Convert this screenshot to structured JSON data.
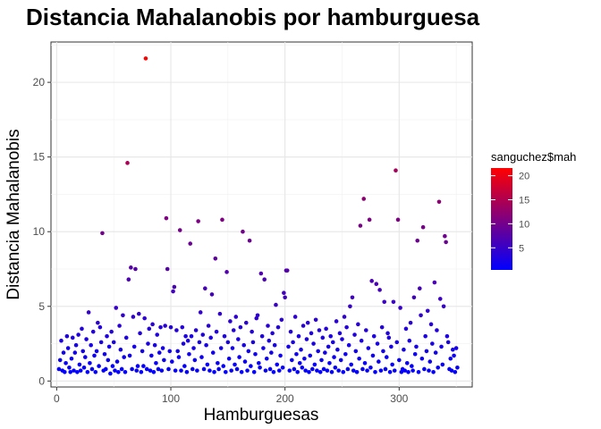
{
  "chart_data": {
    "type": "scatter",
    "title": "Distancia Mahalanobis por hamburguesa",
    "xlabel": "Hamburguesas",
    "ylabel": "Distancia Mahalanobis",
    "xlim": [
      -5,
      364
    ],
    "ylim": [
      -0.4,
      22.7
    ],
    "x_ticks": [
      0,
      100,
      200,
      300
    ],
    "y_ticks": [
      0,
      5,
      10,
      15,
      20
    ],
    "grid": true,
    "legend": {
      "title": "sanguchez$mah",
      "position": "right",
      "low_color": "#0000FF",
      "high_color": "#FF0000",
      "range": [
        0.4,
        21.6
      ],
      "ticks": [
        5,
        10,
        15,
        20
      ]
    },
    "points": [
      [
        2,
        0.8
      ],
      [
        3,
        1.4
      ],
      [
        4,
        2.7
      ],
      [
        5,
        0.7
      ],
      [
        6,
        1.9
      ],
      [
        7,
        0.6
      ],
      [
        8,
        1.2
      ],
      [
        9,
        3.0
      ],
      [
        10,
        2.2
      ],
      [
        11,
        0.9
      ],
      [
        12,
        0.6
      ],
      [
        13,
        1.5
      ],
      [
        14,
        2.9
      ],
      [
        15,
        0.7
      ],
      [
        16,
        1.9
      ],
      [
        17,
        2.4
      ],
      [
        18,
        0.6
      ],
      [
        19,
        3.1
      ],
      [
        20,
        1.1
      ],
      [
        21,
        0.7
      ],
      [
        22,
        3.5
      ],
      [
        23,
        2.0
      ],
      [
        24,
        0.9
      ],
      [
        25,
        1.6
      ],
      [
        26,
        2.8
      ],
      [
        27,
        0.6
      ],
      [
        28,
        4.6
      ],
      [
        29,
        1.2
      ],
      [
        30,
        2.4
      ],
      [
        31,
        0.8
      ],
      [
        32,
        3.3
      ],
      [
        33,
        1.7
      ],
      [
        34,
        0.6
      ],
      [
        35,
        2.0
      ],
      [
        36,
        3.9
      ],
      [
        37,
        1.0
      ],
      [
        38,
        3.6
      ],
      [
        39,
        2.6
      ],
      [
        40,
        9.9
      ],
      [
        41,
        0.7
      ],
      [
        42,
        1.8
      ],
      [
        43,
        0.8
      ],
      [
        44,
        3.0
      ],
      [
        45,
        1.4
      ],
      [
        46,
        2.3
      ],
      [
        47,
        0.5
      ],
      [
        48,
        3.3
      ],
      [
        49,
        1.0
      ],
      [
        50,
        2.6
      ],
      [
        51,
        0.7
      ],
      [
        52,
        4.9
      ],
      [
        53,
        1.3
      ],
      [
        54,
        0.6
      ],
      [
        55,
        3.7
      ],
      [
        56,
        2.1
      ],
      [
        57,
        0.8
      ],
      [
        58,
        4.4
      ],
      [
        59,
        1.6
      ],
      [
        60,
        0.6
      ],
      [
        61,
        2.9
      ],
      [
        62,
        14.6
      ],
      [
        63,
        6.8
      ],
      [
        64,
        1.7
      ],
      [
        65,
        7.6
      ],
      [
        66,
        0.8
      ],
      [
        67,
        4.3
      ],
      [
        68,
        2.3
      ],
      [
        69,
        7.5
      ],
      [
        70,
        0.7
      ],
      [
        71,
        1.0
      ],
      [
        72,
        4.5
      ],
      [
        73,
        3.2
      ],
      [
        74,
        0.6
      ],
      [
        75,
        2.0
      ],
      [
        76,
        1.0
      ],
      [
        77,
        4.2
      ],
      [
        78,
        21.6
      ],
      [
        79,
        0.8
      ],
      [
        80,
        2.5
      ],
      [
        81,
        3.5
      ],
      [
        82,
        0.7
      ],
      [
        83,
        1.7
      ],
      [
        84,
        3.8
      ],
      [
        85,
        0.6
      ],
      [
        86,
        2.4
      ],
      [
        87,
        1.2
      ],
      [
        88,
        3.1
      ],
      [
        89,
        0.8
      ],
      [
        90,
        1.9
      ],
      [
        91,
        3.6
      ],
      [
        92,
        0.7
      ],
      [
        93,
        2.2
      ],
      [
        94,
        1.4
      ],
      [
        95,
        3.7
      ],
      [
        96,
        10.9
      ],
      [
        97,
        7.5
      ],
      [
        98,
        0.8
      ],
      [
        99,
        2.0
      ],
      [
        100,
        3.6
      ],
      [
        101,
        1.3
      ],
      [
        102,
        6.0
      ],
      [
        103,
        6.3
      ],
      [
        104,
        0.7
      ],
      [
        105,
        3.4
      ],
      [
        106,
        2.0
      ],
      [
        107,
        1.6
      ],
      [
        108,
        10.1
      ],
      [
        109,
        0.7
      ],
      [
        110,
        3.6
      ],
      [
        111,
        2.5
      ],
      [
        112,
        1.0
      ],
      [
        113,
        3.0
      ],
      [
        114,
        0.6
      ],
      [
        115,
        2.7
      ],
      [
        116,
        1.8
      ],
      [
        117,
        9.2
      ],
      [
        118,
        3.0
      ],
      [
        119,
        0.8
      ],
      [
        120,
        2.2
      ],
      [
        121,
        1.4
      ],
      [
        122,
        3.4
      ],
      [
        123,
        0.7
      ],
      [
        124,
        10.7
      ],
      [
        125,
        2.6
      ],
      [
        126,
        4.6
      ],
      [
        127,
        1.6
      ],
      [
        128,
        3.1
      ],
      [
        129,
        0.8
      ],
      [
        130,
        6.2
      ],
      [
        131,
        2.4
      ],
      [
        132,
        1.1
      ],
      [
        133,
        3.7
      ],
      [
        134,
        0.7
      ],
      [
        135,
        2.9
      ],
      [
        136,
        5.8
      ],
      [
        137,
        1.9
      ],
      [
        138,
        0.6
      ],
      [
        139,
        8.2
      ],
      [
        140,
        3.3
      ],
      [
        141,
        1.2
      ],
      [
        142,
        0.8
      ],
      [
        143,
        4.5
      ],
      [
        144,
        2.2
      ],
      [
        145,
        10.8
      ],
      [
        146,
        1.0
      ],
      [
        147,
        3.0
      ],
      [
        148,
        0.6
      ],
      [
        149,
        7.3
      ],
      [
        150,
        2.6
      ],
      [
        151,
        1.5
      ],
      [
        152,
        4.0
      ],
      [
        153,
        0.7
      ],
      [
        154,
        2.2
      ],
      [
        155,
        3.4
      ],
      [
        156,
        1.1
      ],
      [
        157,
        4.3
      ],
      [
        158,
        0.8
      ],
      [
        159,
        2.8
      ],
      [
        160,
        1.6
      ],
      [
        161,
        3.6
      ],
      [
        162,
        0.6
      ],
      [
        163,
        10.0
      ],
      [
        164,
        2.4
      ],
      [
        165,
        1.3
      ],
      [
        166,
        3.9
      ],
      [
        167,
        0.7
      ],
      [
        168,
        2.0
      ],
      [
        169,
        9.4
      ],
      [
        170,
        1.0
      ],
      [
        171,
        3.3
      ],
      [
        172,
        2.6
      ],
      [
        173,
        0.6
      ],
      [
        174,
        1.8
      ],
      [
        175,
        4.2
      ],
      [
        176,
        4.4
      ],
      [
        177,
        1.2
      ],
      [
        178,
        0.9
      ],
      [
        179,
        7.2
      ],
      [
        180,
        3.0
      ],
      [
        181,
        2.2
      ],
      [
        182,
        6.8
      ],
      [
        183,
        0.7
      ],
      [
        184,
        1.5
      ],
      [
        185,
        3.7
      ],
      [
        186,
        2.7
      ],
      [
        187,
        0.8
      ],
      [
        188,
        1.9
      ],
      [
        189,
        3.2
      ],
      [
        190,
        0.6
      ],
      [
        191,
        2.4
      ],
      [
        192,
        5.1
      ],
      [
        193,
        1.1
      ],
      [
        194,
        3.6
      ],
      [
        195,
        0.7
      ],
      [
        196,
        1.7
      ],
      [
        197,
        4.1
      ],
      [
        198,
        0.9
      ],
      [
        199,
        5.9
      ],
      [
        200,
        5.6
      ],
      [
        201,
        7.4
      ],
      [
        202,
        7.4
      ],
      [
        203,
        2.3
      ],
      [
        204,
        0.7
      ],
      [
        205,
        3.3
      ],
      [
        206,
        1.4
      ],
      [
        207,
        2.6
      ],
      [
        208,
        0.8
      ],
      [
        209,
        4.3
      ],
      [
        210,
        1.8
      ],
      [
        211,
        0.6
      ],
      [
        212,
        3.0
      ],
      [
        213,
        1.2
      ],
      [
        214,
        2.1
      ],
      [
        215,
        0.9
      ],
      [
        216,
        3.7
      ],
      [
        217,
        1.5
      ],
      [
        218,
        0.7
      ],
      [
        219,
        2.8
      ],
      [
        220,
        3.9
      ],
      [
        221,
        0.6
      ],
      [
        222,
        1.7
      ],
      [
        223,
        3.2
      ],
      [
        224,
        0.8
      ],
      [
        225,
        2.5
      ],
      [
        226,
        1.1
      ],
      [
        227,
        4.1
      ],
      [
        228,
        0.7
      ],
      [
        229,
        2.0
      ],
      [
        230,
        3.4
      ],
      [
        231,
        0.6
      ],
      [
        232,
        1.4
      ],
      [
        233,
        2.9
      ],
      [
        234,
        0.8
      ],
      [
        235,
        1.9
      ],
      [
        236,
        3.5
      ],
      [
        237,
        0.7
      ],
      [
        238,
        2.3
      ],
      [
        239,
        1.2
      ],
      [
        240,
        3.0
      ],
      [
        241,
        0.6
      ],
      [
        242,
        2.6
      ],
      [
        243,
        1.6
      ],
      [
        244,
        0.9
      ],
      [
        245,
        4.0
      ],
      [
        246,
        2.1
      ],
      [
        247,
        0.7
      ],
      [
        248,
        3.2
      ],
      [
        249,
        1.4
      ],
      [
        250,
        2.8
      ],
      [
        251,
        0.6
      ],
      [
        252,
        4.3
      ],
      [
        253,
        1.8
      ],
      [
        254,
        3.6
      ],
      [
        255,
        0.8
      ],
      [
        256,
        2.4
      ],
      [
        257,
        5.0
      ],
      [
        258,
        1.1
      ],
      [
        259,
        5.6
      ],
      [
        260,
        0.7
      ],
      [
        261,
        3.1
      ],
      [
        262,
        2.0
      ],
      [
        263,
        0.6
      ],
      [
        264,
        3.8
      ],
      [
        265,
        1.5
      ],
      [
        266,
        10.4
      ],
      [
        267,
        2.7
      ],
      [
        268,
        0.8
      ],
      [
        269,
        12.2
      ],
      [
        270,
        1.2
      ],
      [
        271,
        3.4
      ],
      [
        272,
        0.7
      ],
      [
        273,
        2.2
      ],
      [
        274,
        10.8
      ],
      [
        275,
        0.9
      ],
      [
        276,
        6.7
      ],
      [
        277,
        1.7
      ],
      [
        278,
        3.0
      ],
      [
        279,
        0.6
      ],
      [
        280,
        6.5
      ],
      [
        281,
        2.5
      ],
      [
        282,
        1.3
      ],
      [
        283,
        6.1
      ],
      [
        284,
        0.7
      ],
      [
        285,
        3.6
      ],
      [
        286,
        2.0
      ],
      [
        287,
        5.3
      ],
      [
        288,
        0.8
      ],
      [
        289,
        1.6
      ],
      [
        290,
        3.2
      ],
      [
        291,
        2.9
      ],
      [
        292,
        0.6
      ],
      [
        293,
        2.3
      ],
      [
        294,
        1.1
      ],
      [
        295,
        5.3
      ],
      [
        296,
        0.7
      ],
      [
        297,
        14.1
      ],
      [
        298,
        2.6
      ],
      [
        299,
        10.8
      ],
      [
        300,
        1.4
      ],
      [
        301,
        4.9
      ],
      [
        302,
        0.6
      ],
      [
        303,
        0.8
      ],
      [
        304,
        2.1
      ],
      [
        305,
        0.7
      ],
      [
        306,
        3.5
      ],
      [
        307,
        1.2
      ],
      [
        308,
        0.6
      ],
      [
        309,
        2.7
      ],
      [
        310,
        3.9
      ],
      [
        311,
        1.0
      ],
      [
        312,
        0.7
      ],
      [
        313,
        5.6
      ],
      [
        314,
        1.8
      ],
      [
        315,
        2.3
      ],
      [
        316,
        9.4
      ],
      [
        317,
        0.6
      ],
      [
        318,
        6.2
      ],
      [
        319,
        4.4
      ],
      [
        320,
        1.5
      ],
      [
        321,
        10.3
      ],
      [
        322,
        0.8
      ],
      [
        323,
        3.0
      ],
      [
        324,
        2.0
      ],
      [
        325,
        4.7
      ],
      [
        326,
        0.7
      ],
      [
        327,
        1.3
      ],
      [
        328,
        3.8
      ],
      [
        329,
        2.5
      ],
      [
        330,
        0.6
      ],
      [
        331,
        6.6
      ],
      [
        332,
        1.9
      ],
      [
        333,
        3.4
      ],
      [
        334,
        0.9
      ],
      [
        335,
        12.0
      ],
      [
        336,
        5.5
      ],
      [
        337,
        2.3
      ],
      [
        338,
        1.1
      ],
      [
        339,
        5.0
      ],
      [
        340,
        9.7
      ],
      [
        341,
        9.3
      ],
      [
        342,
        3.0
      ],
      [
        343,
        2.6
      ],
      [
        344,
        0.8
      ],
      [
        345,
        1.5
      ],
      [
        346,
        0.7
      ],
      [
        347,
        2.1
      ],
      [
        348,
        1.7
      ],
      [
        349,
        0.6
      ],
      [
        350,
        2.2
      ],
      [
        351,
        0.9
      ]
    ]
  }
}
